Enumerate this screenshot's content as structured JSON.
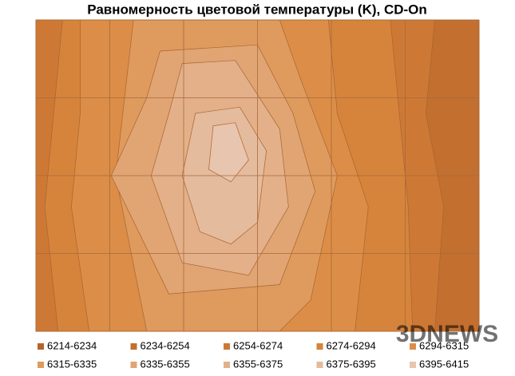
{
  "chart_data": {
    "type": "contour",
    "title": "Равномерность цветовой температуры (K), CD-On",
    "watermark": "3DNEWS",
    "series": [
      {
        "name": "6214-6234",
        "color": "#b5652a"
      },
      {
        "name": "6234-6254",
        "color": "#c26f30"
      },
      {
        "name": "6254-6274",
        "color": "#cd7935"
      },
      {
        "name": "6274-6294",
        "color": "#d6843c"
      },
      {
        "name": "6294-6315",
        "color": "#dc8e48"
      },
      {
        "name": "6315-6335",
        "color": "#df9a5e"
      },
      {
        "name": "6335-6355",
        "color": "#e1a574"
      },
      {
        "name": "6355-6375",
        "color": "#e3b089"
      },
      {
        "name": "6375-6395",
        "color": "#e5bb9d"
      },
      {
        "name": "6395-6415",
        "color": "#e8c5ae"
      }
    ],
    "grid": true
  }
}
